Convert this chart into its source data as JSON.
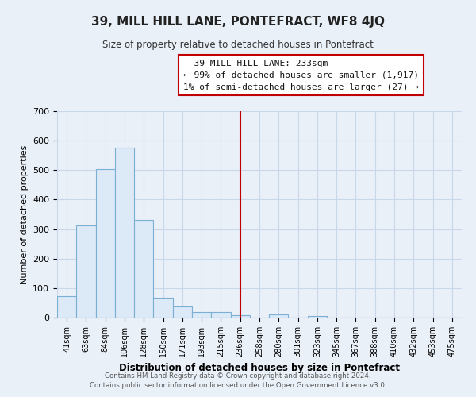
{
  "title": "39, MILL HILL LANE, PONTEFRACT, WF8 4JQ",
  "subtitle": "Size of property relative to detached houses in Pontefract",
  "xlabel": "Distribution of detached houses by size in Pontefract",
  "ylabel": "Number of detached properties",
  "bin_labels": [
    "41sqm",
    "63sqm",
    "84sqm",
    "106sqm",
    "128sqm",
    "150sqm",
    "171sqm",
    "193sqm",
    "215sqm",
    "236sqm",
    "258sqm",
    "280sqm",
    "301sqm",
    "323sqm",
    "345sqm",
    "367sqm",
    "388sqm",
    "410sqm",
    "432sqm",
    "453sqm",
    "475sqm"
  ],
  "bar_values": [
    72,
    311,
    504,
    576,
    332,
    68,
    37,
    20,
    18,
    8,
    0,
    11,
    0,
    5,
    0,
    0,
    0,
    0,
    0,
    0,
    0
  ],
  "bar_color": "#dce9f7",
  "bar_edge_color": "#7bafd4",
  "property_line_bin": 9,
  "annotation_title": "39 MILL HILL LANE: 233sqm",
  "annotation_line1": "← 99% of detached houses are smaller (1,917)",
  "annotation_line2": "1% of semi-detached houses are larger (27) →",
  "annotation_box_color": "#ffffff",
  "annotation_box_edge": "#c00000",
  "vertical_line_color": "#c00000",
  "ylim": [
    0,
    700
  ],
  "yticks": [
    0,
    100,
    200,
    300,
    400,
    500,
    600,
    700
  ],
  "grid_color": "#c8d8ea",
  "footer_line1": "Contains HM Land Registry data © Crown copyright and database right 2024.",
  "footer_line2": "Contains public sector information licensed under the Open Government Licence v3.0.",
  "background_color": "#eaf0f8"
}
